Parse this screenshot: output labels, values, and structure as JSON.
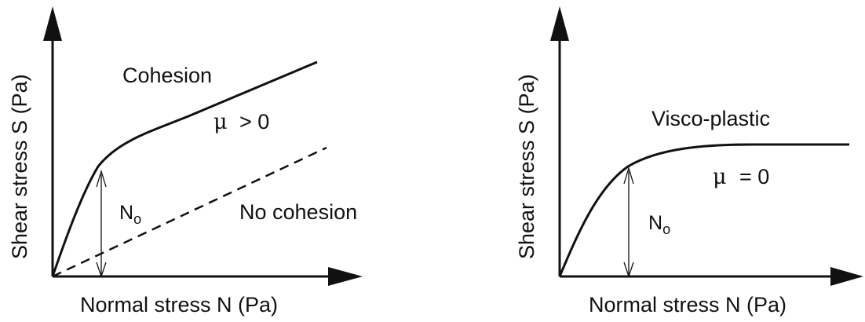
{
  "colors": {
    "ink": "#111111",
    "background": "#ffffff"
  },
  "panels": [
    {
      "id": "cohesion",
      "ylabel": "Shear stress S (Pa)",
      "xlabel": "Normal stress N (Pa)",
      "curve_label": "Cohesion",
      "mu_symbol": "μ",
      "mu_condition": "> 0",
      "dashed_label": "No cohesion",
      "threshold_symbol": "N",
      "threshold_subscript": "o"
    },
    {
      "id": "visco-plastic",
      "ylabel": "Shear stress S (Pa)",
      "xlabel": "Normal stress N (Pa)",
      "curve_label": "Visco-plastic",
      "mu_symbol": "μ",
      "mu_condition": "= 0",
      "threshold_symbol": "N",
      "threshold_subscript": "o"
    }
  ]
}
